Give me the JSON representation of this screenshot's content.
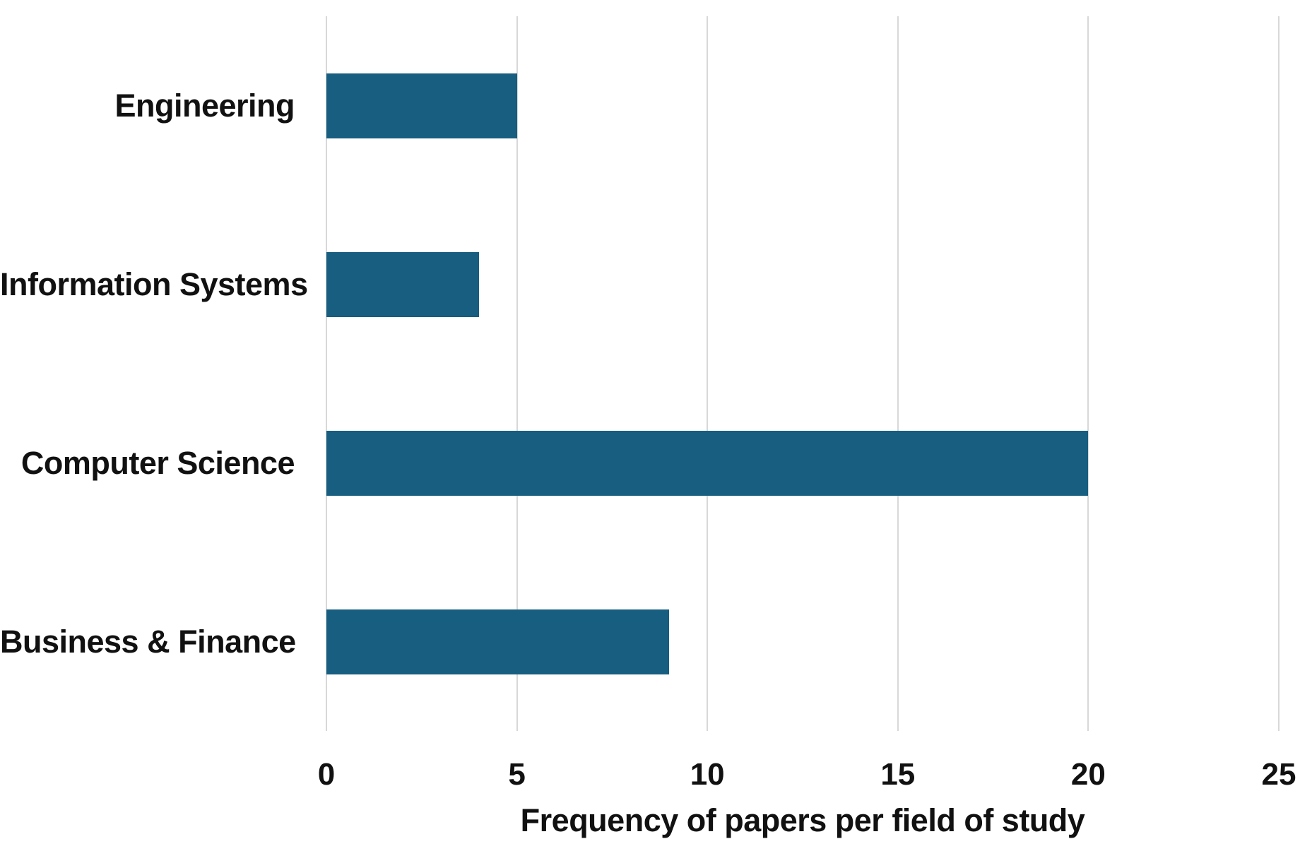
{
  "chart_data": {
    "type": "bar",
    "orientation": "horizontal",
    "categories": [
      "Engineering",
      "Information Systems",
      "Computer Science",
      "Business & Finance"
    ],
    "values": [
      5,
      4,
      20,
      9
    ],
    "title": "",
    "xlabel": "Frequency of papers per field of study",
    "ylabel": "",
    "xlim": [
      0,
      25
    ],
    "xticks": [
      0,
      5,
      10,
      15,
      20,
      25
    ],
    "grid": true,
    "legend": false,
    "colors": {
      "bar": "#175E80",
      "gridline": "#D8D8D8",
      "text": "#111111",
      "background": "#FFFFFF"
    }
  }
}
